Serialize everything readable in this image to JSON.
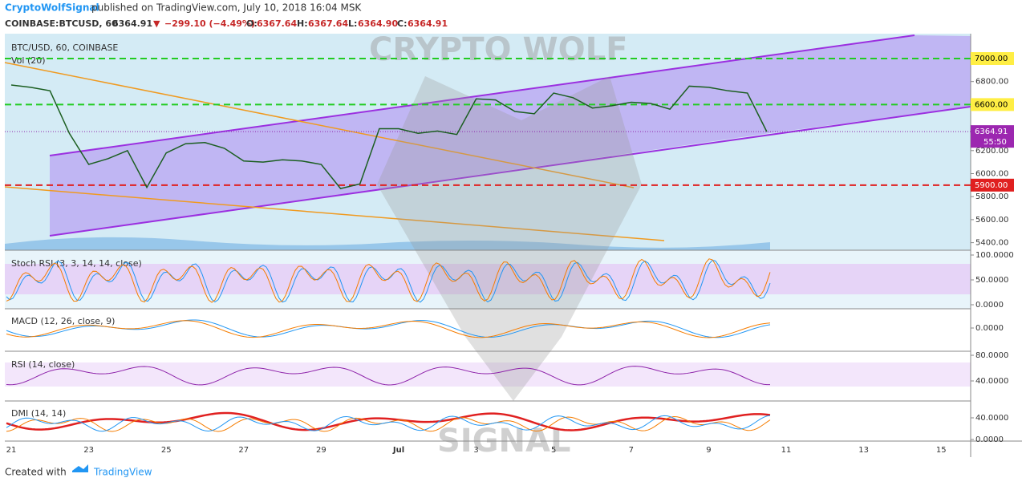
{
  "header": {
    "author": "CryptoWolfSignal",
    "published": "published on TradingView.com, July 10, 2018 16:04 MSK",
    "symbol": "COINBASE:BTCUSD, 60",
    "last": "6364.91",
    "arrow": "▼",
    "change": "−299.10 (−4.49%)",
    "o_label": "O:",
    "o": "6367.64",
    "h_label": "H:",
    "h": "6367.64",
    "l_label": "L:",
    "l": "6364.90",
    "c_label": "C:",
    "c": "6364.91"
  },
  "panels": {
    "main": "BTC/USD, 60, COINBASE",
    "vol": "Vol (20)",
    "stoch": "Stoch RSI (3, 3, 14, 14, close)",
    "macd": "MACD (12, 26, close, 9)",
    "rsi": "RSI (14, close)",
    "dmi": "DMI (14, 14)"
  },
  "watermark": {
    "top": "CRYPTO WOLF",
    "bottom": "SIGNAL"
  },
  "price": {
    "values": [
      6770,
      6750,
      6720,
      6350,
      6080,
      6130,
      6200,
      5880,
      6180,
      6260,
      6270,
      6220,
      6110,
      6100,
      6120,
      6110,
      6080,
      5870,
      5910,
      6390,
      6390,
      6350,
      6370,
      6340,
      6650,
      6640,
      6540,
      6520,
      6700,
      6660,
      6570,
      6590,
      6620,
      6610,
      6560,
      6760,
      6750,
      6720,
      6700,
      6365
    ]
  },
  "price_axis": {
    "ticks": [
      {
        "value": 7000,
        "label": "7000.00"
      },
      {
        "value": 6800,
        "label": "6800.00"
      },
      {
        "value": 6600,
        "label": "6600.00"
      },
      {
        "value": 6200,
        "label": "6200.00"
      },
      {
        "value": 6000,
        "label": "6000.00"
      },
      {
        "value": 5800,
        "label": "5800.00"
      },
      {
        "value": 5600,
        "label": "5600.00"
      },
      {
        "value": 5400,
        "label": "5400.00"
      }
    ],
    "last_tag": 6364.91,
    "countdown": "55:50",
    "support": {
      "value": 5900,
      "label": "5900.00"
    }
  },
  "stoch_axis": [
    {
      "value": 100,
      "label": "100.0000"
    },
    {
      "value": 50,
      "label": "50.0000"
    },
    {
      "value": 0,
      "label": "0.0000"
    }
  ],
  "macd_axis": [
    {
      "value": 0,
      "label": "0.0000"
    }
  ],
  "rsi_axis": [
    {
      "value": 80,
      "label": "80.0000"
    },
    {
      "value": 40,
      "label": "40.0000"
    }
  ],
  "dmi_axis": [
    {
      "value": 40,
      "label": "40.0000"
    },
    {
      "value": 0,
      "label": "0.0000"
    }
  ],
  "time_axis": [
    "21",
    "23",
    "25",
    "27",
    "29",
    "Jul",
    "3",
    "5",
    "7",
    "9",
    "11",
    "13",
    "15"
  ],
  "footer": {
    "created": "Created with",
    "brand": "TradingView"
  }
}
